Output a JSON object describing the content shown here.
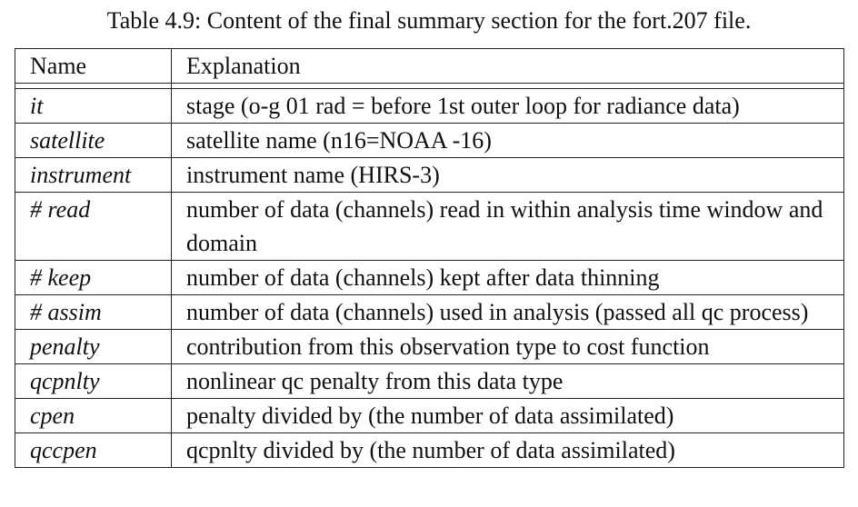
{
  "caption": "Table 4.9: Content of the final summary section for the fort.207 file.",
  "columns": {
    "name": "Name",
    "explanation": "Explanation"
  },
  "rows": [
    {
      "name": "it",
      "explanation": "stage (o-g 01 rad = before 1st outer loop for radiance data)"
    },
    {
      "name": "satellite",
      "explanation": "satellite name (n16=NOAA -16)"
    },
    {
      "name": "instrument",
      "explanation": "instrument name (HIRS-3)"
    },
    {
      "name": "# read",
      "explanation": "number of data (channels) read in within analysis time window and domain"
    },
    {
      "name": "# keep",
      "explanation": "number of data (channels) kept after data thinning"
    },
    {
      "name": "# assim",
      "explanation": "number of data (channels) used in analysis (passed all qc process)"
    },
    {
      "name": "penalty",
      "explanation": "contribution from this observation type to cost function"
    },
    {
      "name": "qcpnlty",
      "explanation": "nonlinear qc penalty from this data type"
    },
    {
      "name": "cpen",
      "explanation": "penalty divided by (the number of data assimilated)"
    },
    {
      "name": "qccpen",
      "explanation": "qcpnlty divided by (the number of data assimilated)"
    }
  ]
}
